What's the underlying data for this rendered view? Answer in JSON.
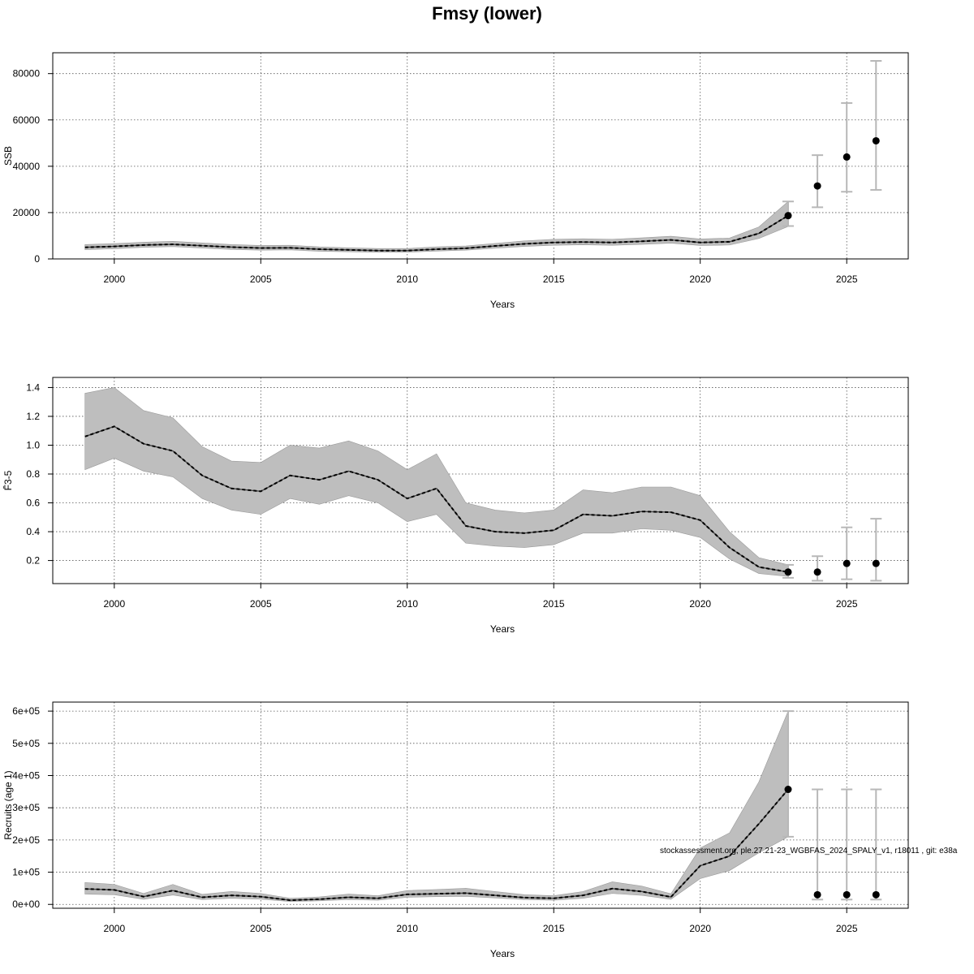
{
  "title": "Fmsy (lower)",
  "footnote": "stockassessment.org, ple.27.21-23_WGBFAS_2024_SPALY_v1, r18011 , git: e38a",
  "colors": {
    "band": "#bebebe",
    "line": "#000000",
    "errorbar": "#b8b8b8",
    "grid": "#555555"
  },
  "chart_data": [
    {
      "type": "line",
      "ylabel": "SSB",
      "xlabel": "Years",
      "xlim": [
        1997.9,
        2027.1
      ],
      "ylim": [
        0,
        89000
      ],
      "xticks": [
        2000,
        2005,
        2010,
        2015,
        2020,
        2025
      ],
      "yticks": [
        0,
        20000,
        40000,
        60000,
        80000
      ],
      "ytick_labels": [
        "0",
        "20000",
        "40000",
        "60000",
        "80000"
      ],
      "grid": true,
      "series": [
        {
          "kind": "estimate_with_band",
          "x": [
            1999,
            2000,
            2001,
            2002,
            2003,
            2004,
            2005,
            2006,
            2007,
            2008,
            2009,
            2010,
            2011,
            2012,
            2013,
            2014,
            2015,
            2016,
            2017,
            2018,
            2019,
            2020,
            2021,
            2022,
            2023
          ],
          "y": [
            5000,
            5400,
            6000,
            6300,
            5700,
            5100,
            4700,
            4800,
            4200,
            3900,
            3600,
            3600,
            4200,
            4600,
            5600,
            6500,
            7100,
            7300,
            7100,
            7600,
            8200,
            7100,
            7400,
            11000,
            18700
          ],
          "lower": [
            4000,
            4400,
            5000,
            5300,
            4700,
            4100,
            3800,
            3900,
            3300,
            3100,
            2900,
            2900,
            3400,
            3800,
            4600,
            5400,
            5900,
            6100,
            5900,
            6300,
            6800,
            5800,
            6000,
            8800,
            14000
          ],
          "upper": [
            6200,
            6600,
            7200,
            7600,
            6900,
            6200,
            5800,
            5900,
            5200,
            4800,
            4500,
            4500,
            5200,
            5600,
            6700,
            7800,
            8500,
            8700,
            8500,
            9100,
            9800,
            8600,
            9000,
            13800,
            24800
          ]
        },
        {
          "kind": "forecast",
          "x": [
            2023,
            2024,
            2025,
            2026
          ],
          "y": [
            18700,
            31500,
            44000,
            51000
          ],
          "lower": [
            14200,
            22300,
            29000,
            29800
          ],
          "upper": [
            24800,
            44800,
            67300,
            85500
          ]
        }
      ]
    },
    {
      "type": "line",
      "ylabel": "F̄3-5",
      "xlabel": "Years",
      "xlim": [
        1997.9,
        2027.1
      ],
      "ylim": [
        0.04,
        1.47
      ],
      "xticks": [
        2000,
        2005,
        2010,
        2015,
        2020,
        2025
      ],
      "yticks": [
        0.2,
        0.4,
        0.6,
        0.8,
        1.0,
        1.2,
        1.4
      ],
      "ytick_labels": [
        "0.2",
        "0.4",
        "0.6",
        "0.8",
        "1.0",
        "1.2",
        "1.4"
      ],
      "grid": true,
      "series": [
        {
          "kind": "estimate_with_band",
          "x": [
            1999,
            2000,
            2001,
            2002,
            2003,
            2004,
            2005,
            2006,
            2007,
            2008,
            2009,
            2010,
            2011,
            2012,
            2013,
            2014,
            2015,
            2016,
            2017,
            2018,
            2019,
            2020,
            2021,
            2022,
            2023
          ],
          "y": [
            1.06,
            1.13,
            1.01,
            0.96,
            0.79,
            0.7,
            0.68,
            0.79,
            0.76,
            0.82,
            0.76,
            0.63,
            0.7,
            0.44,
            0.4,
            0.39,
            0.41,
            0.52,
            0.51,
            0.54,
            0.535,
            0.48,
            0.29,
            0.155,
            0.12
          ],
          "lower": [
            0.83,
            0.91,
            0.82,
            0.78,
            0.63,
            0.55,
            0.52,
            0.63,
            0.59,
            0.65,
            0.6,
            0.47,
            0.52,
            0.32,
            0.3,
            0.29,
            0.31,
            0.39,
            0.39,
            0.42,
            0.41,
            0.36,
            0.21,
            0.11,
            0.09
          ],
          "upper": [
            1.36,
            1.4,
            1.24,
            1.19,
            0.99,
            0.89,
            0.88,
            1.0,
            0.98,
            1.03,
            0.96,
            0.83,
            0.94,
            0.6,
            0.55,
            0.53,
            0.55,
            0.69,
            0.67,
            0.71,
            0.71,
            0.65,
            0.4,
            0.22,
            0.17
          ]
        },
        {
          "kind": "forecast",
          "x": [
            2023,
            2024,
            2025,
            2026
          ],
          "y": [
            0.12,
            0.12,
            0.18,
            0.18
          ],
          "lower": [
            0.08,
            0.06,
            0.07,
            0.06
          ],
          "upper": [
            0.17,
            0.23,
            0.43,
            0.49
          ]
        }
      ]
    },
    {
      "type": "line",
      "ylabel": "Recruits (age 1)",
      "xlabel": "Years",
      "xlim": [
        1997.9,
        2027.1
      ],
      "ylim": [
        -12000,
        628000
      ],
      "xticks": [
        2000,
        2005,
        2010,
        2015,
        2020,
        2025
      ],
      "yticks": [
        0,
        100000,
        200000,
        300000,
        400000,
        500000,
        600000
      ],
      "ytick_labels": [
        "0e+00",
        "1e+05",
        "2e+05",
        "3e+05",
        "4e+05",
        "5e+05",
        "6e+05"
      ],
      "grid": true,
      "series": [
        {
          "kind": "estimate_with_band",
          "x": [
            1999,
            2000,
            2001,
            2002,
            2003,
            2004,
            2005,
            2006,
            2007,
            2008,
            2009,
            2010,
            2011,
            2012,
            2013,
            2014,
            2015,
            2016,
            2017,
            2018,
            2019,
            2020,
            2021,
            2022,
            2023
          ],
          "y": [
            48000,
            45000,
            24000,
            43000,
            22000,
            28000,
            24000,
            13000,
            16000,
            22000,
            19000,
            31000,
            33000,
            35000,
            28000,
            21000,
            19000,
            28000,
            49000,
            40000,
            23000,
            120000,
            150000,
            250000,
            357000
          ],
          "lower": [
            32000,
            30000,
            16000,
            29000,
            15000,
            19000,
            16000,
            9000,
            11000,
            15000,
            13000,
            22000,
            24000,
            25000,
            20000,
            15000,
            13000,
            19000,
            34000,
            28000,
            16000,
            80000,
            105000,
            160000,
            210000
          ],
          "upper": [
            68000,
            62000,
            34000,
            62000,
            31000,
            40000,
            34000,
            19000,
            23000,
            32000,
            27000,
            43000,
            46000,
            50000,
            40000,
            30000,
            27000,
            40000,
            70000,
            57000,
            33000,
            175000,
            222000,
            380000,
            600000
          ]
        },
        {
          "kind": "forecast",
          "x": [
            2023,
            2024,
            2025,
            2026
          ],
          "y": [
            357000,
            30000,
            30000,
            30000
          ],
          "lower": [
            210000,
            15000,
            15000,
            15000
          ],
          "upper": [
            600000,
            357000,
            357000,
            357000
          ]
        }
      ]
    }
  ]
}
